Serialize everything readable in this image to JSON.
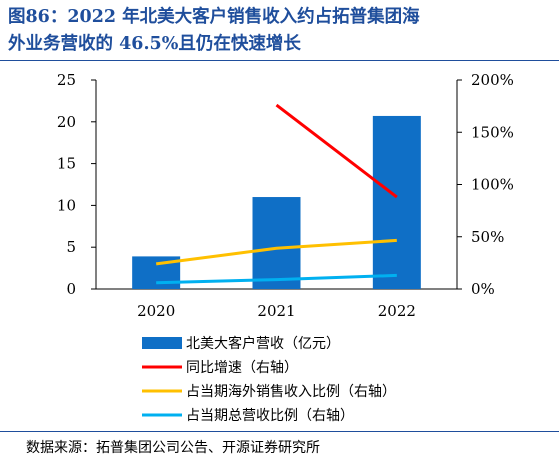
{
  "header": {
    "title_line1": "图86：2022 年北美大客户销售收入约占拓普集团海",
    "title_line2": "外业务营收的 46.5%且仍在快速增长"
  },
  "source": "数据来源：拓普集团公司公告、开源证券研究所",
  "colors": {
    "title": "#1f4e9c",
    "bar": "#0f6fc6",
    "yoy": "#ff0000",
    "overseas_share": "#ffc000",
    "total_share": "#00b0f0"
  },
  "chart_data": {
    "type": "bar",
    "categories": [
      "2020",
      "2021",
      "2022"
    ],
    "left_axis": {
      "ylim": [
        0,
        25
      ],
      "ticks": [
        "0",
        "5",
        "10",
        "15",
        "20",
        "25"
      ]
    },
    "right_axis": {
      "ylim": [
        0,
        200
      ],
      "ticks": [
        "0%",
        "50%",
        "100%",
        "150%",
        "200%"
      ]
    },
    "series": [
      {
        "name": "北美大客户营收（亿元）",
        "type": "bar",
        "axis": "left",
        "values": [
          3.9,
          11.0,
          20.7
        ]
      },
      {
        "name": "同比增速（右轴）",
        "type": "line",
        "axis": "right",
        "values": [
          null,
          176,
          88
        ]
      },
      {
        "name": "占当期海外销售收入比例（右轴）",
        "type": "line",
        "axis": "right",
        "values": [
          24,
          39,
          46.5
        ]
      },
      {
        "name": "占当期总营收比例（右轴）",
        "type": "line",
        "axis": "right",
        "values": [
          6,
          9,
          13
        ]
      }
    ],
    "grid": false,
    "legend_position": "bottom"
  }
}
